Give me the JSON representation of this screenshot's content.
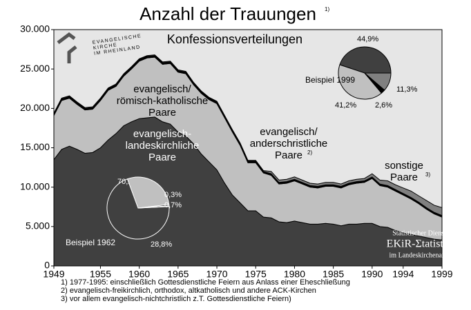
{
  "chart_data": [
    {
      "type": "stacked_area",
      "title": "Anzahl der Trauungen",
      "title_note": "1)",
      "subtitle": "Konfessionsverteilungen",
      "x": [
        1949,
        1950,
        1951,
        1952,
        1953,
        1954,
        1955,
        1956,
        1957,
        1958,
        1959,
        1960,
        1961,
        1962,
        1963,
        1964,
        1965,
        1966,
        1967,
        1968,
        1969,
        1970,
        1971,
        1972,
        1973,
        1974,
        1975,
        1976,
        1977,
        1978,
        1979,
        1980,
        1981,
        1982,
        1983,
        1984,
        1985,
        1986,
        1987,
        1988,
        1989,
        1990,
        1991,
        1992,
        1993,
        1994,
        1995,
        1996,
        1997,
        1998,
        1999
      ],
      "xlim": [
        1949,
        1999
      ],
      "xticks": [
        1949,
        1955,
        1960,
        1965,
        1970,
        1975,
        1980,
        1985,
        1990,
        1994,
        1999
      ],
      "ylim": [
        0,
        30000
      ],
      "yticks": [
        0,
        {
          "value": 5000,
          "label": "5.000"
        },
        {
          "value": 10000,
          "label": "10.000"
        },
        {
          "value": 15000,
          "label": "15.000"
        },
        {
          "value": 20000,
          "label": "20.000"
        },
        {
          "value": 25000,
          "label": "25.000"
        },
        {
          "value": 30000,
          "label": "30.000"
        }
      ],
      "series": [
        {
          "name_lines": [
            "evangelisch-",
            "landeskirchliche",
            "Paare"
          ],
          "color": "#404040",
          "values": [
            13500,
            14800,
            15200,
            14800,
            14300,
            14400,
            15000,
            16000,
            16800,
            17800,
            18300,
            18700,
            18800,
            18900,
            18300,
            18000,
            17000,
            16500,
            15500,
            14200,
            13200,
            12200,
            10500,
            9000,
            8000,
            7000,
            7000,
            6200,
            6100,
            5600,
            5500,
            5700,
            5500,
            5300,
            5300,
            5400,
            5300,
            5100,
            5300,
            5300,
            5400,
            5400,
            5000,
            4900,
            4500,
            4200,
            4000,
            3800,
            3600,
            3400,
            3300
          ]
        },
        {
          "name_lines": [
            "evangelisch/",
            "römisch-katholische",
            "Paare"
          ],
          "color": "#c0c0c0",
          "values": [
            5600,
            6200,
            6100,
            5700,
            5500,
            5500,
            6000,
            6300,
            6000,
            6300,
            6700,
            7300,
            7600,
            7600,
            7300,
            7700,
            7600,
            7900,
            7500,
            7700,
            7900,
            8400,
            8300,
            8000,
            7300,
            6100,
            6100,
            5600,
            5400,
            4800,
            5000,
            5100,
            4900,
            4700,
            4600,
            4700,
            4800,
            4800,
            5000,
            5200,
            5200,
            5700,
            5200,
            5100,
            5000,
            4800,
            4500,
            4100,
            3600,
            3200,
            2900
          ]
        },
        {
          "name_lines": [
            "evangelisch/",
            "anderschristliche",
            "Paare"
          ],
          "note": "2)",
          "color": "#000000",
          "values": [
            200,
            200,
            200,
            200,
            200,
            200,
            200,
            200,
            200,
            200,
            200,
            200,
            200,
            200,
            200,
            200,
            200,
            200,
            200,
            200,
            200,
            200,
            200,
            200,
            200,
            200,
            200,
            200,
            200,
            200,
            200,
            200,
            200,
            200,
            200,
            200,
            200,
            200,
            200,
            200,
            200,
            200,
            200,
            200,
            200,
            200,
            200,
            200,
            200,
            200,
            200
          ]
        },
        {
          "name_lines": [
            "sonstige",
            "Paare"
          ],
          "note": "3)",
          "color": "#808080",
          "values": [
            100,
            100,
            100,
            100,
            100,
            100,
            100,
            100,
            100,
            100,
            100,
            100,
            100,
            100,
            100,
            100,
            100,
            100,
            100,
            100,
            100,
            100,
            100,
            100,
            100,
            100,
            100,
            100,
            300,
            300,
            300,
            300,
            300,
            300,
            300,
            300,
            300,
            300,
            300,
            300,
            300,
            400,
            500,
            600,
            600,
            700,
            800,
            800,
            900,
            900,
            1000
          ]
        }
      ],
      "footnotes": [
        "1) 1977-1995: einschließlich Gottesdienstliche Feiern aus Anlass einer Eheschließung",
        "2) evangelisch-freikirchlich, orthodox, altkatholisch und andere ACK-Kirchen",
        "3) vor allem evangelisch-nichtchristlich z.T. Gottesdienstliche Feiern)"
      ],
      "logo": [
        "EVANGELISCHE",
        "KIRCHE",
        "IM RHEINLAND"
      ],
      "source": [
        "Statistischer Dienst",
        "EKiR-Σtatistik",
        "im Landeskirchenamt"
      ]
    },
    {
      "type": "pie",
      "title": "Beispiel 1999",
      "values": [
        44.9,
        41.2,
        2.6,
        11.3
      ],
      "value_labels": [
        "44,9%",
        "41,2%",
        "2,6%",
        "11,3%"
      ],
      "colors": [
        "#404040",
        "#c0c0c0",
        "#000000",
        "#808080"
      ]
    },
    {
      "type": "pie",
      "title": "Beispiel 1962",
      "values": [
        70.2,
        28.8,
        0.7,
        0.3
      ],
      "value_labels": [
        "70,2%",
        "28,8%",
        "0,7%",
        "0,3%"
      ],
      "colors": [
        "#404040",
        "#c0c0c0",
        "#000000",
        "#808080"
      ]
    }
  ]
}
